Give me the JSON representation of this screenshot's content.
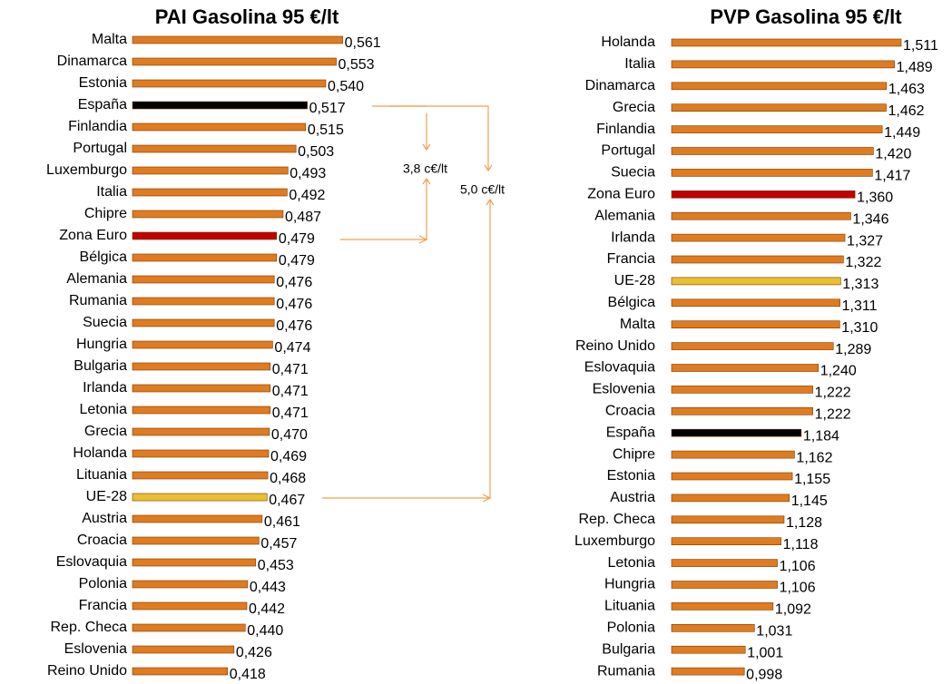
{
  "chart_data": [
    {
      "type": "bar",
      "horizontal": true,
      "title": "PAI Gasolina 95 €/lt",
      "categories": [
        "Malta",
        "Dinamarca",
        "Estonia",
        "España",
        "Finlandia",
        "Portugal",
        "Luxemburgo",
        "Italia",
        "Chipre",
        "Zona Euro",
        "Bélgica",
        "Alemania",
        "Rumania",
        "Suecia",
        "Hungria",
        "Bulgaria",
        "Irlanda",
        "Letonia",
        "Grecia",
        "Holanda",
        "Lituania",
        "UE-28",
        "Austria",
        "Croacia",
        "Eslovaquia",
        "Polonia",
        "Francia",
        "Rep. Checa",
        "Eslovenia",
        "Reino Unido"
      ],
      "values": [
        0.561,
        0.553,
        0.54,
        0.517,
        0.515,
        0.503,
        0.493,
        0.492,
        0.487,
        0.479,
        0.479,
        0.476,
        0.476,
        0.476,
        0.474,
        0.471,
        0.471,
        0.471,
        0.47,
        0.469,
        0.468,
        0.467,
        0.461,
        0.457,
        0.453,
        0.443,
        0.442,
        0.44,
        0.426,
        0.418
      ],
      "value_labels": [
        "0,561",
        "0,553",
        "0,540",
        "0,517",
        "0,515",
        "0,503",
        "0,493",
        "0,492",
        "0,487",
        "0,479",
        "0,479",
        "0,476",
        "0,476",
        "0,476",
        "0,474",
        "0,471",
        "0,471",
        "0,471",
        "0,470",
        "0,469",
        "0,468",
        "0,467",
        "0,461",
        "0,457",
        "0,453",
        "0,443",
        "0,442",
        "0,440",
        "0,426",
        "0,418"
      ],
      "colors": [
        "#e07b20",
        "#e07b20",
        "#e07b20",
        "#000000",
        "#e07b20",
        "#e07b20",
        "#e07b20",
        "#e07b20",
        "#e07b20",
        "#c00000",
        "#e07b20",
        "#e07b20",
        "#e07b20",
        "#e07b20",
        "#e07b20",
        "#e07b20",
        "#e07b20",
        "#e07b20",
        "#e07b20",
        "#e07b20",
        "#e07b20",
        "#e8c030",
        "#e07b20",
        "#e07b20",
        "#e07b20",
        "#e07b20",
        "#e07b20",
        "#e07b20",
        "#e07b20",
        "#e07b20"
      ],
      "xlim": [
        0.3,
        0.62
      ]
    },
    {
      "type": "bar",
      "horizontal": true,
      "title": "PVP Gasolina 95 €/lt",
      "categories": [
        "Holanda",
        "Italia",
        "Dinamarca",
        "Grecia",
        "Finlandia",
        "Portugal",
        "Suecia",
        "Zona Euro",
        "Alemania",
        "Irlanda",
        "Francia",
        "UE-28",
        "Bélgica",
        "Malta",
        "Reino Unido",
        "Eslovaquia",
        "Eslovenia",
        "Croacia",
        "España",
        "Chipre",
        "Estonia",
        "Austria",
        "Rep. Checa",
        "Luxemburgo",
        "Letonia",
        "Hungria",
        "Lituania",
        "Polonia",
        "Bulgaria",
        "Rumania"
      ],
      "values": [
        1.511,
        1.489,
        1.463,
        1.462,
        1.449,
        1.42,
        1.417,
        1.36,
        1.346,
        1.327,
        1.322,
        1.313,
        1.311,
        1.31,
        1.289,
        1.24,
        1.222,
        1.222,
        1.184,
        1.162,
        1.155,
        1.145,
        1.128,
        1.118,
        1.106,
        1.106,
        1.092,
        1.031,
        1.001,
        0.998
      ],
      "value_labels": [
        "1,511",
        "1,489",
        "1,463",
        "1,462",
        "1,449",
        "1,420",
        "1,417",
        "1,360",
        "1,346",
        "1,327",
        "1,322",
        "1,313",
        "1,311",
        "1,310",
        "1,289",
        "1,240",
        "1,222",
        "1,222",
        "1,184",
        "1,162",
        "1,155",
        "1,145",
        "1,128",
        "1,118",
        "1,106",
        "1,106",
        "1,092",
        "1,031",
        "1,001",
        "0,998"
      ],
      "colors": [
        "#e07b20",
        "#e07b20",
        "#e07b20",
        "#e07b20",
        "#e07b20",
        "#e07b20",
        "#e07b20",
        "#c00000",
        "#e07b20",
        "#e07b20",
        "#e07b20",
        "#e8c030",
        "#e07b20",
        "#e07b20",
        "#e07b20",
        "#e07b20",
        "#e07b20",
        "#e07b20",
        "#000000",
        "#e07b20",
        "#e07b20",
        "#e07b20",
        "#e07b20",
        "#e07b20",
        "#e07b20",
        "#e07b20",
        "#e07b20",
        "#e07b20",
        "#e07b20",
        "#e07b20"
      ],
      "xlim": [
        0.76,
        1.6
      ]
    }
  ],
  "annotations": [
    "3,8 c€/lt",
    "5,0 c€/lt"
  ]
}
